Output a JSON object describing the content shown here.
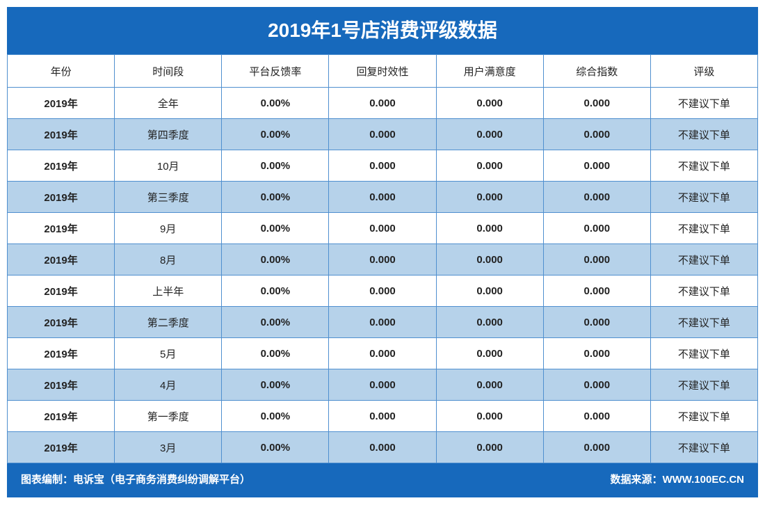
{
  "title": "2019年1号店消费评级数据",
  "table": {
    "header": [
      "年份",
      "时间段",
      "平台反馈率",
      "回复时效性",
      "用户满意度",
      "综合指数",
      "评级"
    ],
    "rows": [
      [
        "2019年",
        "全年",
        "0.00%",
        "0.000",
        "0.000",
        "0.000",
        "不建议下单"
      ],
      [
        "2019年",
        "第四季度",
        "0.00%",
        "0.000",
        "0.000",
        "0.000",
        "不建议下单"
      ],
      [
        "2019年",
        "10月",
        "0.00%",
        "0.000",
        "0.000",
        "0.000",
        "不建议下单"
      ],
      [
        "2019年",
        "第三季度",
        "0.00%",
        "0.000",
        "0.000",
        "0.000",
        "不建议下单"
      ],
      [
        "2019年",
        "9月",
        "0.00%",
        "0.000",
        "0.000",
        "0.000",
        "不建议下单"
      ],
      [
        "2019年",
        "8月",
        "0.00%",
        "0.000",
        "0.000",
        "0.000",
        "不建议下单"
      ],
      [
        "2019年",
        "上半年",
        "0.00%",
        "0.000",
        "0.000",
        "0.000",
        "不建议下单"
      ],
      [
        "2019年",
        "第二季度",
        "0.00%",
        "0.000",
        "0.000",
        "0.000",
        "不建议下单"
      ],
      [
        "2019年",
        "5月",
        "0.00%",
        "0.000",
        "0.000",
        "0.000",
        "不建议下单"
      ],
      [
        "2019年",
        "4月",
        "0.00%",
        "0.000",
        "0.000",
        "0.000",
        "不建议下单"
      ],
      [
        "2019年",
        "第一季度",
        "0.00%",
        "0.000",
        "0.000",
        "0.000",
        "不建议下单"
      ],
      [
        "2019年",
        "3月",
        "0.00%",
        "0.000",
        "0.000",
        "0.000",
        "不建议下单"
      ]
    ]
  },
  "footer": {
    "left": "图表编制：电诉宝（电子商务消费纠纷调解平台）",
    "right": "数据来源：WWW.100EC.CN"
  }
}
